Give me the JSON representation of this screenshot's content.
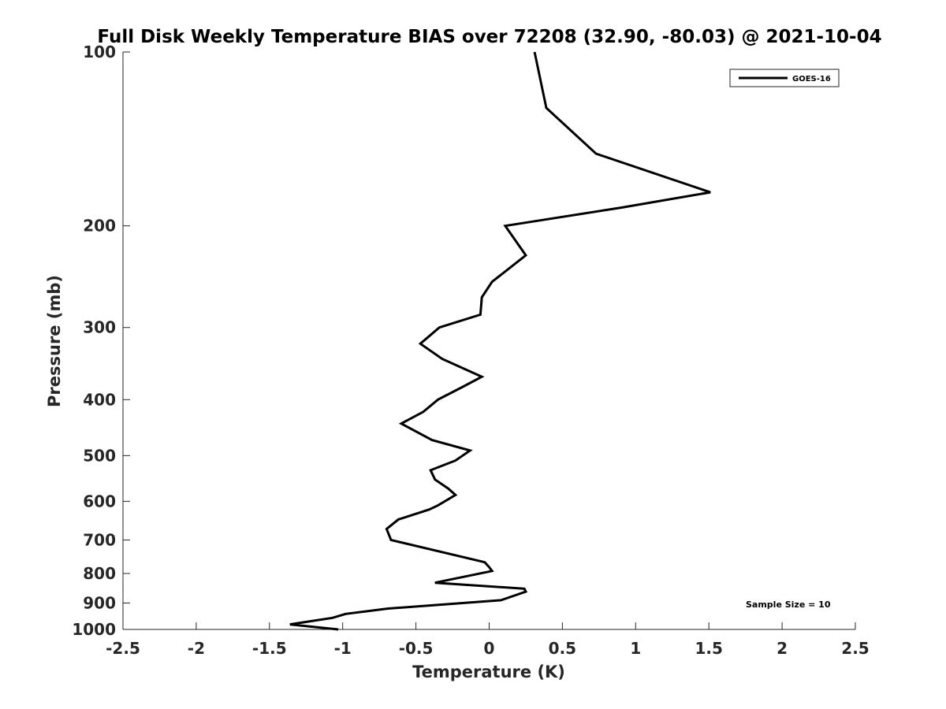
{
  "chart_data": {
    "type": "line",
    "title": "Full Disk Weekly Temperature BIAS over 72208 (32.90, -80.03) @ 2021-10-04",
    "xlabel": "Temperature (K)",
    "ylabel": "Pressure (mb)",
    "xlim": [
      -2.5,
      2.5
    ],
    "ylim": [
      1000,
      100
    ],
    "y_scale": "log",
    "y_reversed": true,
    "xticks": [
      -2.5,
      -2,
      -1.5,
      -1,
      -0.5,
      0,
      0.5,
      1,
      1.5,
      2,
      2.5
    ],
    "xtick_labels": [
      "-2.5",
      "-2",
      "-1.5",
      "-1",
      "-0.5",
      "0",
      "0.5",
      "1",
      "1.5",
      "2",
      "2.5"
    ],
    "yticks": [
      100,
      200,
      300,
      400,
      500,
      600,
      700,
      800,
      900,
      1000
    ],
    "ytick_labels": [
      "100",
      "200",
      "300",
      "400",
      "500",
      "600",
      "700",
      "800",
      "900",
      "1000"
    ],
    "grid": false,
    "legend_position": "top-right",
    "annotation": "Sample Size = 10",
    "series": [
      {
        "name": "GOES-16",
        "color": "#000000",
        "points": [
          {
            "x": 0.31,
            "p": 100
          },
          {
            "x": 0.39,
            "p": 125
          },
          {
            "x": 0.73,
            "p": 150
          },
          {
            "x": 1.51,
            "p": 175
          },
          {
            "x": 0.9,
            "p": 186
          },
          {
            "x": 0.11,
            "p": 200
          },
          {
            "x": 0.25,
            "p": 225
          },
          {
            "x": 0.02,
            "p": 250
          },
          {
            "x": -0.05,
            "p": 266
          },
          {
            "x": -0.06,
            "p": 285
          },
          {
            "x": -0.34,
            "p": 300
          },
          {
            "x": -0.47,
            "p": 320
          },
          {
            "x": -0.32,
            "p": 340
          },
          {
            "x": -0.05,
            "p": 365
          },
          {
            "x": -0.18,
            "p": 380
          },
          {
            "x": -0.35,
            "p": 400
          },
          {
            "x": -0.45,
            "p": 420
          },
          {
            "x": -0.6,
            "p": 440
          },
          {
            "x": -0.39,
            "p": 470
          },
          {
            "x": -0.13,
            "p": 490
          },
          {
            "x": -0.23,
            "p": 510
          },
          {
            "x": -0.4,
            "p": 530
          },
          {
            "x": -0.37,
            "p": 550
          },
          {
            "x": -0.28,
            "p": 570
          },
          {
            "x": -0.23,
            "p": 585
          },
          {
            "x": -0.35,
            "p": 610
          },
          {
            "x": -0.41,
            "p": 620
          },
          {
            "x": -0.62,
            "p": 645
          },
          {
            "x": -0.7,
            "p": 670
          },
          {
            "x": -0.68,
            "p": 690
          },
          {
            "x": -0.67,
            "p": 700
          },
          {
            "x": -0.03,
            "p": 765
          },
          {
            "x": 0.0,
            "p": 780
          },
          {
            "x": 0.02,
            "p": 792
          },
          {
            "x": -0.37,
            "p": 830
          },
          {
            "x": 0.24,
            "p": 850
          },
          {
            "x": 0.25,
            "p": 860
          },
          {
            "x": 0.08,
            "p": 890
          },
          {
            "x": -0.69,
            "p": 920
          },
          {
            "x": -0.98,
            "p": 940
          },
          {
            "x": -1.07,
            "p": 955
          },
          {
            "x": -1.36,
            "p": 980
          },
          {
            "x": -1.03,
            "p": 1000
          }
        ]
      }
    ]
  }
}
